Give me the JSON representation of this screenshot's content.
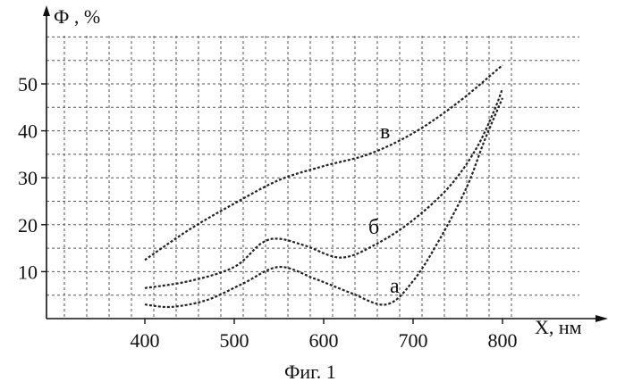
{
  "chart_data": {
    "type": "line",
    "title": "",
    "caption": "Фиг. 1",
    "ylabel": "Ф , %",
    "xlabel": "X, нм",
    "xlim": [
      300,
      825
    ],
    "ylim": [
      0,
      60
    ],
    "x_ticks": [
      400,
      500,
      600,
      700,
      800
    ],
    "y_ticks": [
      10,
      20,
      30,
      40,
      50
    ],
    "grid": true,
    "series": [
      {
        "name": "а",
        "x": [
          400,
          430,
          470,
          510,
          550,
          590,
          630,
          670,
          700,
          730,
          760,
          780,
          800
        ],
        "y": [
          3,
          2.5,
          4,
          7.5,
          11,
          8.5,
          5.5,
          3,
          8,
          17,
          28,
          38,
          47
        ]
      },
      {
        "name": "б",
        "x": [
          400,
          450,
          500,
          530,
          550,
          580,
          620,
          660,
          700,
          740,
          770,
          790,
          800
        ],
        "y": [
          6.5,
          8,
          11,
          16,
          17,
          15.5,
          13,
          16,
          21,
          28,
          36,
          44,
          49
        ]
      },
      {
        "name": "в",
        "x": [
          400,
          450,
          500,
          550,
          600,
          650,
          700,
          750,
          800
        ],
        "y": [
          12.5,
          19,
          24.5,
          29.5,
          32.5,
          35,
          39.5,
          46,
          54
        ]
      }
    ]
  }
}
